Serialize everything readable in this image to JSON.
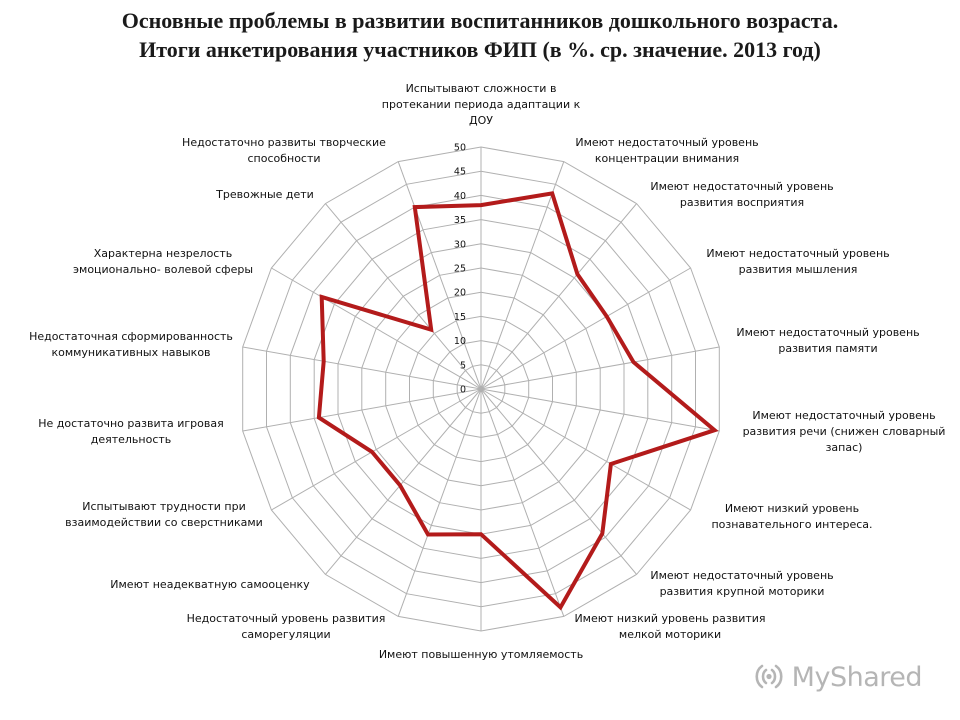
{
  "title": {
    "line1": "Основные проблемы в развитии воспитанников дошкольного возраста.",
    "line2": "Итоги анкетирования участников ФИП (в %. ср. значение. 2013 год)"
  },
  "watermark": {
    "text": "MyShared",
    "icon": "myshared-logo-icon"
  },
  "chart_data": {
    "type": "radar",
    "title": "Основные проблемы в развитии воспитанников дошкольного возраста. Итоги анкетирования участников ФИП (в %. ср. значение. 2013 год)",
    "rlim": [
      0,
      50
    ],
    "ticks": [
      0,
      5,
      10,
      15,
      20,
      25,
      30,
      35,
      40,
      45,
      50
    ],
    "grid": true,
    "line_color": "#b31b1b",
    "grid_color": "#b0b0b0",
    "categories": [
      "Испытывают сложности в протекании периода адаптации к ДОУ",
      "Имеют недостаточный уровень концентрации внимания",
      "Имеют недостаточный уровень развития восприятия",
      "Имеют недостаточный уровень развития мышления",
      "Имеют недостаточный уровень развития памяти",
      "Имеют недостаточный уровень развития речи (снижен словарный запас)",
      "Имеют низкий уровень познавательного интереса.",
      "Имеют недостаточный уровень развития крупной моторики",
      "Имеют низкий уровень развития мелкой моторики",
      "Имеют повышенную утомляемость",
      "Недостаточный уровень развития саморегуляции",
      "Имеют неадекватную самооценку",
      "Испытывают трудности при взаимодействии со сверстниками",
      "Не достаточно развита игровая деятельность",
      "Недостаточная сформированность коммуникативных навыков",
      "Характерна незрелость эмоционально- волевой сферы",
      "Тревожные дети",
      "Недостаточно развиты творческие способности"
    ],
    "category_lines": [
      [
        "Испытывают сложности в",
        "протекании периода адаптации к",
        "ДОУ"
      ],
      [
        "Имеют недостаточный уровень",
        "концентрации внимания"
      ],
      [
        "Имеют недостаточный уровень",
        "развития восприятия"
      ],
      [
        "Имеют недостаточный уровень",
        "развития мышления"
      ],
      [
        "Имеют недостаточный уровень",
        "развития памяти"
      ],
      [
        "Имеют недостаточный уровень",
        "развития речи (снижен словарный",
        "запас)"
      ],
      [
        "Имеют низкий уровень",
        "познавательного интереса."
      ],
      [
        "Имеют недостаточный уровень",
        "развития крупной моторики"
      ],
      [
        "Имеют низкий уровень развития",
        "мелкой моторики"
      ],
      [
        "Имеют повышенную утомляемость"
      ],
      [
        "Недостаточный уровень развития",
        "саморегуляции"
      ],
      [
        "Имеют неадекватную самооценку"
      ],
      [
        "Испытывают трудности при",
        "взаимодействии со сверстниками"
      ],
      [
        "Не достаточно развита игровая",
        "деятельность"
      ],
      [
        "Недостаточная сформированность",
        "коммуникативных навыков"
      ],
      [
        "Характерна незрелость",
        "эмоционально- волевой сферы"
      ],
      [
        "Тревожные дети"
      ],
      [
        "Недостаточно развиты творческие",
        "способности"
      ]
    ],
    "series": [
      {
        "values": [
          38,
          43,
          31,
          30,
          32,
          49,
          31,
          39,
          48,
          30,
          32,
          26,
          26,
          34,
          33,
          38,
          16,
          40
        ]
      }
    ]
  }
}
